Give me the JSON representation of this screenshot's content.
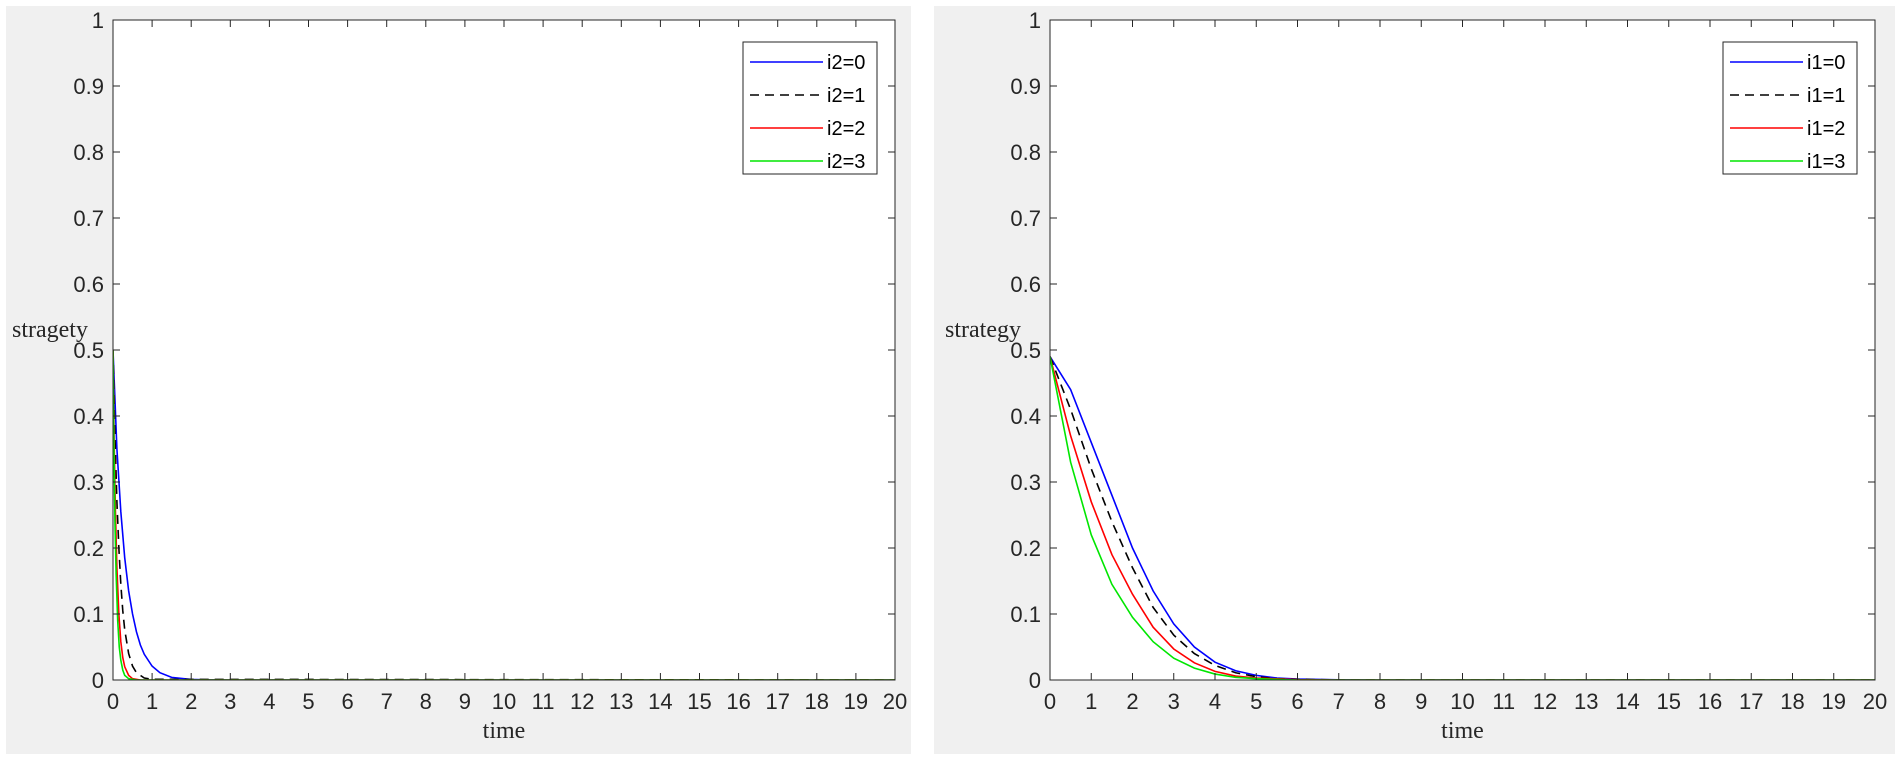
{
  "chart_data": [
    {
      "type": "line",
      "title": "",
      "xlabel": "time",
      "ylabel": "stragety",
      "xlim": [
        0,
        20
      ],
      "ylim": [
        0,
        1
      ],
      "xticks": [
        0,
        1,
        2,
        3,
        4,
        5,
        6,
        7,
        8,
        9,
        10,
        11,
        12,
        13,
        14,
        15,
        16,
        17,
        18,
        19,
        20
      ],
      "yticks": [
        0,
        0.1,
        0.2,
        0.3,
        0.4,
        0.5,
        0.6,
        0.7,
        0.8,
        0.9,
        1
      ],
      "grid": false,
      "legend_position": "top-right",
      "series": [
        {
          "name": "i2=0",
          "color": "#0000ff",
          "dash": "solid",
          "x": [
            0,
            0.1,
            0.2,
            0.3,
            0.4,
            0.5,
            0.6,
            0.7,
            0.8,
            1.0,
            1.2,
            1.5,
            2.0,
            2.5,
            3.0,
            20
          ],
          "y": [
            0.5,
            0.35,
            0.255,
            0.185,
            0.135,
            0.1,
            0.073,
            0.053,
            0.039,
            0.021,
            0.011,
            0.004,
            0.0008,
            0.0001,
            0,
            0
          ]
        },
        {
          "name": "i2=1",
          "color": "#000000",
          "dash": "dashed",
          "x": [
            0,
            0.05,
            0.1,
            0.15,
            0.2,
            0.25,
            0.3,
            0.4,
            0.5,
            0.6,
            0.8,
            1.0,
            20
          ],
          "y": [
            0.5,
            0.37,
            0.27,
            0.2,
            0.145,
            0.105,
            0.076,
            0.04,
            0.021,
            0.011,
            0.003,
            0.001,
            0
          ]
        },
        {
          "name": "i2=2",
          "color": "#ff0000",
          "dash": "solid",
          "x": [
            0,
            0.03,
            0.06,
            0.1,
            0.15,
            0.2,
            0.25,
            0.3,
            0.4,
            0.5,
            0.7,
            20
          ],
          "y": [
            0.5,
            0.36,
            0.26,
            0.17,
            0.1,
            0.058,
            0.034,
            0.02,
            0.007,
            0.002,
            0,
            0
          ]
        },
        {
          "name": "i2=3",
          "color": "#00e600",
          "dash": "solid",
          "x": [
            0,
            0.02,
            0.05,
            0.08,
            0.12,
            0.16,
            0.2,
            0.25,
            0.3,
            0.4,
            0.6,
            20
          ],
          "y": [
            0.5,
            0.37,
            0.24,
            0.16,
            0.09,
            0.05,
            0.03,
            0.015,
            0.007,
            0.002,
            0,
            0
          ]
        }
      ]
    },
    {
      "type": "line",
      "title": "",
      "xlabel": "time",
      "ylabel": "strategy",
      "xlim": [
        0,
        20
      ],
      "ylim": [
        0,
        1
      ],
      "xticks": [
        0,
        1,
        2,
        3,
        4,
        5,
        6,
        7,
        8,
        9,
        10,
        11,
        12,
        13,
        14,
        15,
        16,
        17,
        18,
        19,
        20
      ],
      "yticks": [
        0,
        0.1,
        0.2,
        0.3,
        0.4,
        0.5,
        0.6,
        0.7,
        0.8,
        0.9,
        1
      ],
      "grid": false,
      "legend_position": "top-right",
      "series": [
        {
          "name": "i1=0",
          "color": "#0000ff",
          "dash": "solid",
          "x": [
            0,
            0.5,
            1,
            1.5,
            2,
            2.5,
            3,
            3.5,
            4,
            4.5,
            5,
            5.5,
            6,
            7,
            8,
            20
          ],
          "y": [
            0.49,
            0.44,
            0.36,
            0.28,
            0.2,
            0.135,
            0.085,
            0.05,
            0.027,
            0.014,
            0.007,
            0.003,
            0.0015,
            0.0003,
            0,
            0
          ]
        },
        {
          "name": "i1=1",
          "color": "#000000",
          "dash": "dashed",
          "x": [
            0,
            0.5,
            1,
            1.5,
            2,
            2.5,
            3,
            3.5,
            4,
            4.5,
            5,
            5.5,
            6,
            7,
            20
          ],
          "y": [
            0.49,
            0.41,
            0.32,
            0.24,
            0.17,
            0.11,
            0.068,
            0.04,
            0.022,
            0.011,
            0.005,
            0.002,
            0.001,
            0,
            0
          ]
        },
        {
          "name": "i1=2",
          "color": "#ff0000",
          "dash": "solid",
          "x": [
            0,
            0.5,
            1,
            1.5,
            2,
            2.5,
            3,
            3.5,
            4,
            4.5,
            5,
            6,
            7,
            20
          ],
          "y": [
            0.49,
            0.37,
            0.27,
            0.19,
            0.13,
            0.08,
            0.047,
            0.026,
            0.013,
            0.006,
            0.003,
            0.0005,
            0,
            0
          ]
        },
        {
          "name": "i1=3",
          "color": "#00e600",
          "dash": "solid",
          "x": [
            0,
            0.5,
            1,
            1.5,
            2,
            2.5,
            3,
            3.5,
            4,
            4.5,
            5,
            6,
            20
          ],
          "y": [
            0.49,
            0.33,
            0.22,
            0.145,
            0.095,
            0.058,
            0.033,
            0.018,
            0.009,
            0.004,
            0.002,
            0,
            0
          ]
        }
      ]
    }
  ]
}
